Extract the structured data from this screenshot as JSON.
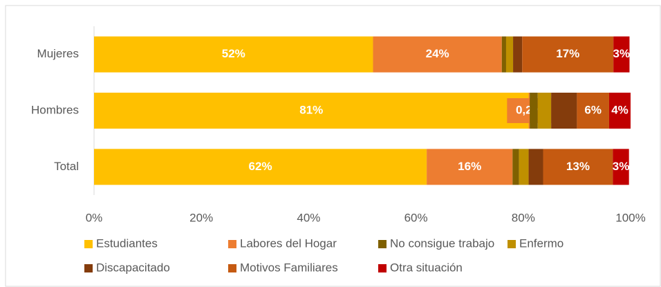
{
  "chart_data": {
    "type": "stacked-barh",
    "categories": [
      "Mujeres",
      "Hombres",
      "Total"
    ],
    "series": [
      {
        "name": "Estudiantes",
        "color": "#FFC000",
        "values": [
          52,
          81,
          62
        ],
        "value_labels": [
          "52%",
          "81%",
          "62%"
        ]
      },
      {
        "name": "Labores del Hogar",
        "color": "#ED7D31",
        "values": [
          24,
          0.2,
          16
        ],
        "value_labels": [
          "24%",
          "0,2%",
          "16%"
        ]
      },
      {
        "name": "No consigue trabajo",
        "color": "#7F6000",
        "values": [
          0.8,
          1.5,
          1.2
        ]
      },
      {
        "name": "Enfermo",
        "color": "#BF9000",
        "values": [
          1.3,
          2.5,
          1.8
        ]
      },
      {
        "name": "Discapacitado",
        "color": "#843C0C",
        "values": [
          1.7,
          4.8,
          2.7
        ]
      },
      {
        "name": "Motivos Familiares",
        "color": "#C55A11",
        "values": [
          17,
          6,
          13
        ],
        "value_labels": [
          "17%",
          "6%",
          "13%"
        ]
      },
      {
        "name": "Otra situación",
        "color": "#C00000",
        "values": [
          3,
          4,
          3
        ],
        "value_labels": [
          "3%",
          "4%",
          "3%"
        ]
      }
    ],
    "xlim": [
      0,
      100
    ],
    "xticks": [
      {
        "value": 0,
        "label": "0%"
      },
      {
        "value": 20,
        "label": "20%"
      },
      {
        "value": 40,
        "label": "40%"
      },
      {
        "value": 60,
        "label": "60%"
      },
      {
        "value": 80,
        "label": "80%"
      },
      {
        "value": 100,
        "label": "100%"
      }
    ],
    "legend": "bottom"
  }
}
